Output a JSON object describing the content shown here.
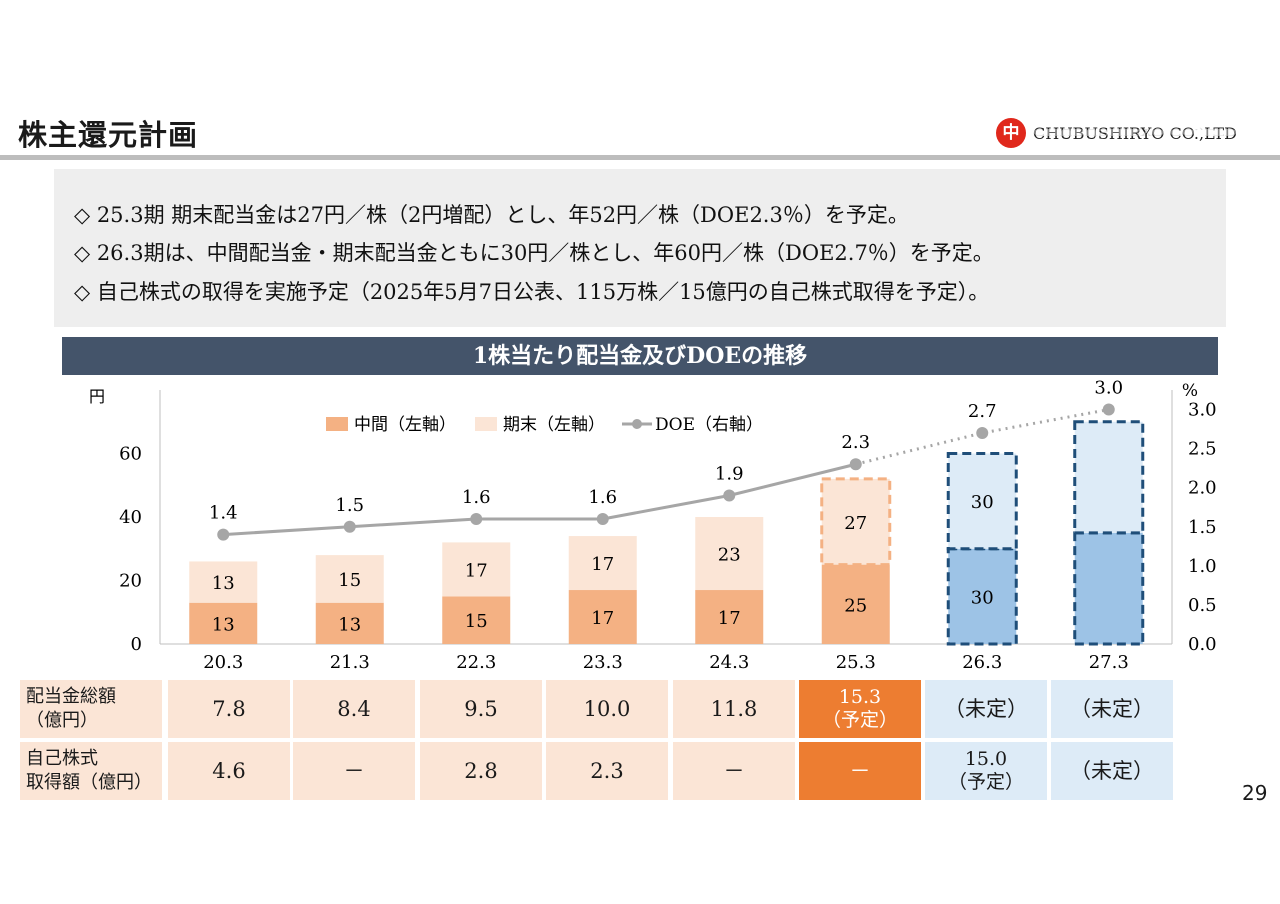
{
  "page": {
    "title": "株主還元計画",
    "company": "CHUBUSHIRYO CO.,LTD",
    "logo_glyph": "中",
    "page_number": "29"
  },
  "summary": [
    "◇ 25.3期 期末配当金は27円／株（2円増配）とし、年52円／株（DOE2.3％）を予定。",
    "◇ 26.3期は、中間配当金・期末配当金ともに30円／株とし、年60円／株（DOE2.7％）を予定。",
    "◇ 自己株式の取得を実施予定（2025年5月7日公表、115万株／15億円の自己株式取得を予定）。"
  ],
  "chart_data": {
    "type": "bar",
    "title": "1株当たり配当金及びDOEの推移",
    "categories": [
      "20.3",
      "21.3",
      "22.3",
      "23.3",
      "24.3",
      "25.3",
      "26.3",
      "27.3"
    ],
    "ylabel": "円",
    "y2label": "%",
    "ylim": [
      0,
      80
    ],
    "y2lim": [
      0,
      3.25
    ],
    "yticks": [
      "0",
      "20",
      "40",
      "60"
    ],
    "y2ticks": [
      "0.0",
      "0.5",
      "1.0",
      "1.5",
      "2.0",
      "2.5",
      "3.0"
    ],
    "legend": {
      "interim": "中間（左軸）",
      "final": "期末（左軸）",
      "doe": "DOE（右軸）"
    },
    "series": [
      {
        "name": "中間（左軸）",
        "axis": "left",
        "values": [
          13,
          13,
          15,
          17,
          17,
          25,
          30,
          null
        ],
        "labels": [
          "13",
          "13",
          "15",
          "17",
          "17",
          "25",
          "30",
          ""
        ]
      },
      {
        "name": "期末（左軸）",
        "axis": "left",
        "values": [
          13,
          15,
          17,
          17,
          23,
          27,
          30,
          null
        ],
        "labels": [
          "13",
          "15",
          "17",
          "17",
          "23",
          "27",
          "30",
          ""
        ]
      },
      {
        "name": "DOE（右軸）",
        "axis": "right",
        "values": [
          1.4,
          1.5,
          1.6,
          1.6,
          1.9,
          2.3,
          2.7,
          3.0
        ],
        "labels": [
          "1.4",
          "1.5",
          "1.6",
          "1.6",
          "1.9",
          "2.3",
          "2.7",
          "3.0"
        ]
      }
    ],
    "forecast_totals": [
      null,
      null,
      null,
      null,
      null,
      null,
      null,
      70
    ],
    "colors": {
      "interim": "#f4b183",
      "final": "#fbe5d6",
      "interim_plan": "#9dc3e6",
      "final_plan": "#ddebf7",
      "doe": "#a6a6a6",
      "dash": "#1f4e79",
      "dash_orange": "#f4b183"
    }
  },
  "table": {
    "headers": [
      "配当金総額\n（億円）",
      "自己株式\n取得額（億円）"
    ],
    "rows": [
      [
        "7.8",
        "8.4",
        "9.5",
        "10.0",
        "11.8",
        "15.3\n（予定）",
        "（未定）",
        "（未定）"
      ],
      [
        "4.6",
        "－",
        "2.8",
        "2.3",
        "－",
        "－",
        "15.0\n（予定）",
        "（未定）"
      ]
    ],
    "colors": {
      "past": "#fbe5d6",
      "highlight": "#ed7d31",
      "plan": "#ddebf7"
    }
  }
}
